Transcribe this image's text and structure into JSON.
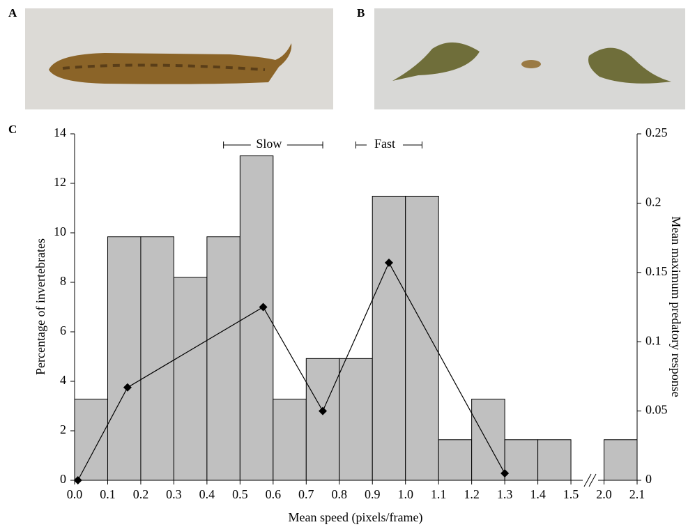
{
  "panels": [
    "A",
    "B",
    "C"
  ],
  "chart_data": {
    "type": "histogram",
    "x_label": "Mean speed (pixels/frame)",
    "y_label": "Percentage of invertebrates",
    "y2_label": "Mean maximum predatory response",
    "bins": [
      0,
      0.1,
      0.2,
      0.3,
      0.4,
      0.5,
      0.6,
      0.7,
      0.8,
      0.9,
      1.0,
      1.1,
      1.2,
      1.3,
      1.4,
      1.5,
      2.0,
      2.1
    ],
    "values": [
      3.28,
      9.84,
      9.84,
      8.2,
      9.84,
      13.11,
      3.28,
      4.92,
      4.92,
      11.48,
      11.48,
      1.64,
      3.28,
      1.64,
      1.64,
      null,
      1.64
    ],
    "color": "#c0c0c0",
    "line": {
      "x": [
        0.01,
        0.16,
        0.57,
        0.75,
        0.95,
        1.3
      ],
      "values": [
        0,
        0.067,
        0.125,
        0.05,
        0.157,
        0.005
      ],
      "axis": "y2",
      "color": "#000000"
    },
    "xticks": [
      {
        "value": 0,
        "label": "0.0"
      },
      0.1,
      0.2,
      0.3,
      0.4,
      0.5,
      0.6,
      0.7,
      0.8,
      0.9,
      {
        "value": 1,
        "label": "1.0"
      },
      1.1,
      1.2,
      1.3,
      1.4,
      1.5,
      {
        "value": 2,
        "label": "2.0"
      },
      2.1
    ],
    "ylim": [
      0,
      14
    ],
    "yticks": [
      0,
      2,
      4,
      6,
      8,
      10,
      12,
      14
    ],
    "y2lim": [
      0,
      0.25
    ],
    "y2ticks": [
      0,
      0.05,
      0.1,
      0.15,
      0.2,
      0.25
    ],
    "annotations": [
      {
        "text": "Slow",
        "range": [
          0.45,
          0.75
        ]
      },
      {
        "text": "Fast",
        "range": [
          0.85,
          1.05
        ]
      }
    ]
  }
}
